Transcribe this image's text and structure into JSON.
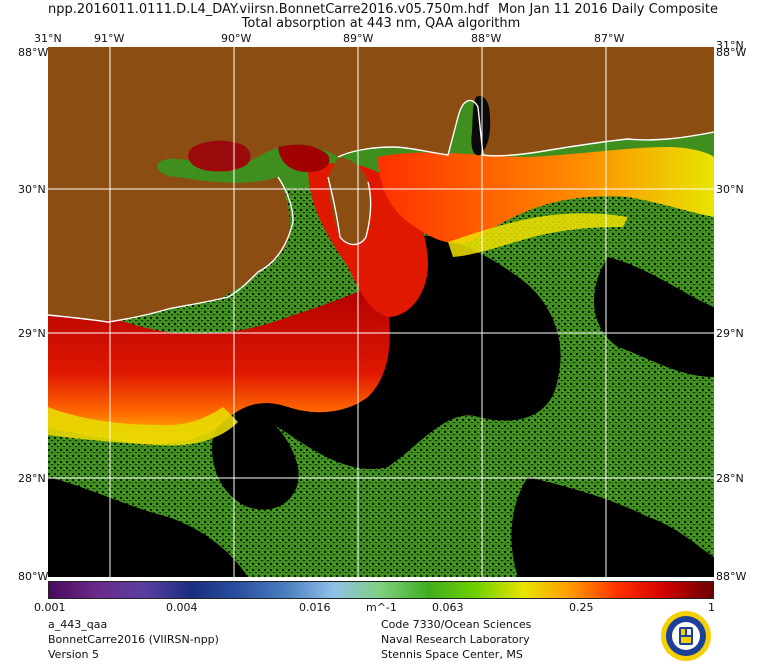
{
  "header": {
    "filename": "npp.2016011.0111.D.L4_DAY.viirsn.BonnetCarre2016.v05.750m.hdf",
    "date": "Mon Jan 11 2016 Daily Composite",
    "subtitle": "Total absorption at 443 nm, QAA algorithm"
  },
  "top_lon_labels": {
    "lat31": "31°N",
    "w91": "91°W",
    "w90": "90°W",
    "w89": "89°W",
    "w88": "88°W",
    "w87": "87°W",
    "edge_right_top": "31°N"
  },
  "corner_labels": {
    "top_left": "88°W",
    "top_right": "88°W",
    "bottom_left": "80°W",
    "bottom_right": "88°W"
  },
  "lat_labels": {
    "n30": "30°N",
    "n29": "29°N",
    "n28": "28°N"
  },
  "colorbar": {
    "labels": [
      "0.001",
      "0.004",
      "0.016",
      "m^-1",
      "0.063",
      "0.25",
      "1"
    ],
    "colors": [
      "#4a0a5c",
      "#6a2a8a",
      "#5a3fa0",
      "#1a2e80",
      "#2a4fa0",
      "#4a7fc0",
      "#8fc0e8",
      "#7fd07f",
      "#3fae1f",
      "#6fd000",
      "#e8e400",
      "#ff9a00",
      "#ff3000",
      "#d00000",
      "#6a0000"
    ]
  },
  "footer": {
    "left": [
      "a_443_qaa",
      "BonnetCarre2016 (VIIRSN-npp)",
      "Version 5"
    ],
    "right": [
      "Code 7330/Ocean Sciences",
      "Naval Research Laboratory",
      "Stennis Space Center, MS"
    ]
  },
  "map_colors": {
    "land": "#8b4d12",
    "nodata": "#000000",
    "coast": "#ffffff",
    "grid": "#ffffff"
  },
  "logo": {
    "icon": "nrl-seal-icon"
  }
}
